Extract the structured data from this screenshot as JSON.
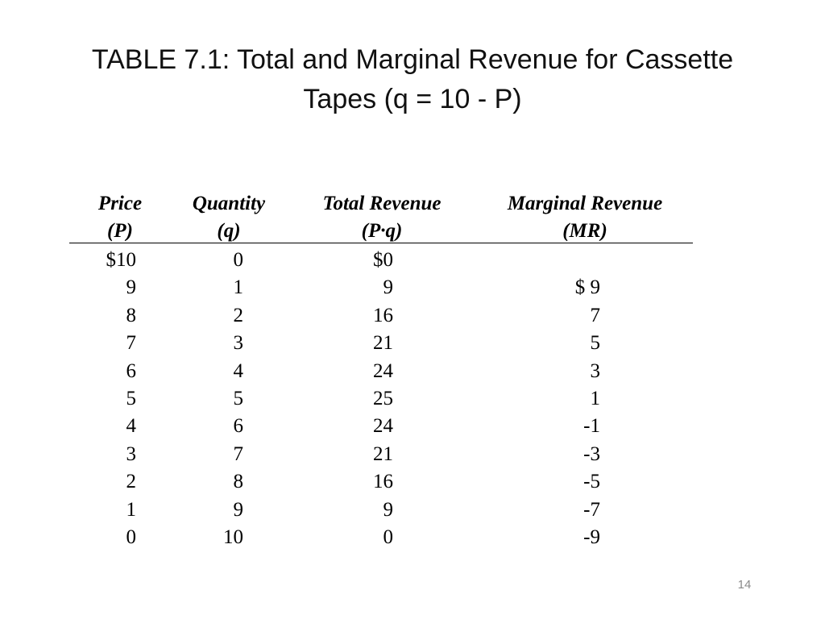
{
  "slide": {
    "title_line1": "TABLE 7.1: Total and Marginal Revenue for Cassette",
    "title_line2": "Tapes (q = 10 - P)",
    "page_number": "14"
  },
  "table": {
    "headers": [
      {
        "line1": "Price",
        "line2": "(P)"
      },
      {
        "line1": "Quantity",
        "line2": "(q)"
      },
      {
        "line1": "Total Revenue",
        "line2": "(P·q)"
      },
      {
        "line1": "Marginal Revenue",
        "line2": "(MR)"
      }
    ],
    "rows": [
      [
        "$10",
        "0",
        "$0",
        ""
      ],
      [
        "9",
        "1",
        "9",
        "$ 9"
      ],
      [
        "8",
        "2",
        "16",
        "7"
      ],
      [
        "7",
        "3",
        "21",
        "5"
      ],
      [
        "6",
        "4",
        "24",
        "3"
      ],
      [
        "5",
        "5",
        "25",
        "1"
      ],
      [
        "4",
        "6",
        "24",
        "-1"
      ],
      [
        "3",
        "7",
        "21",
        "-3"
      ],
      [
        "2",
        "8",
        "16",
        "-5"
      ],
      [
        "1",
        "9",
        "9",
        "-7"
      ],
      [
        "0",
        "10",
        "0",
        "-9"
      ]
    ]
  }
}
